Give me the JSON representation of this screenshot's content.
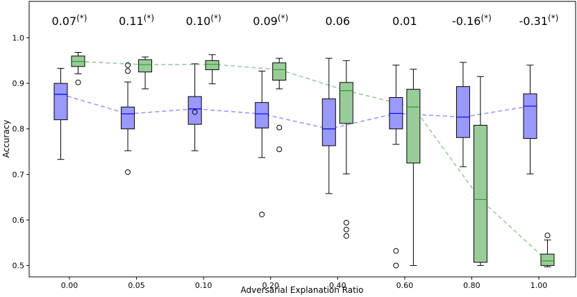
{
  "chart_data": {
    "type": "boxplot",
    "xlabel": "Adversarial Explanation Ratio",
    "ylabel": "Accuracy",
    "ylim": [
      0.475,
      1.08
    ],
    "yticks": [
      0.5,
      0.6,
      0.7,
      0.8,
      0.9,
      1.0
    ],
    "ytick_labels": [
      "0.5",
      "0.6",
      "0.7",
      "0.8",
      "0.9",
      "1.0"
    ],
    "categories": [
      "0.00",
      "0.05",
      "0.10",
      "0.20",
      "0.40",
      "0.60",
      "0.80",
      "1.00"
    ],
    "annotations": [
      {
        "value": "0.07",
        "mark": "(*)"
      },
      {
        "value": "0.11",
        "mark": "(*)"
      },
      {
        "value": "0.10",
        "mark": "(*)"
      },
      {
        "value": "0.09",
        "mark": "(*)"
      },
      {
        "value": "0.06",
        "mark": ""
      },
      {
        "value": "0.01",
        "mark": ""
      },
      {
        "value": "-0.16",
        "mark": "(*)"
      },
      {
        "value": "-0.31",
        "mark": "(*)"
      }
    ],
    "grid": false,
    "series": [
      {
        "color": "#9999ff",
        "median_color": "#0000ee",
        "trend_color": "#9999ff",
        "boxes": [
          {
            "whislo": 0.733,
            "q1": 0.82,
            "med": 0.876,
            "q3": 0.9,
            "whishi": 0.933,
            "fliers": []
          },
          {
            "whislo": 0.752,
            "q1": 0.8,
            "med": 0.833,
            "q3": 0.848,
            "whishi": 0.903,
            "fliers": [
              0.94,
              0.927,
              0.705
            ]
          },
          {
            "whislo": 0.752,
            "q1": 0.81,
            "med": 0.844,
            "q3": 0.871,
            "whishi": 0.943,
            "fliers": [
              0.837
            ]
          },
          {
            "whislo": 0.737,
            "q1": 0.802,
            "med": 0.833,
            "q3": 0.858,
            "whishi": 0.927,
            "fliers": [
              0.612
            ]
          },
          {
            "whislo": 0.658,
            "q1": 0.763,
            "med": 0.8,
            "q3": 0.866,
            "whishi": 0.955,
            "fliers": []
          },
          {
            "whislo": 0.766,
            "q1": 0.8,
            "med": 0.834,
            "q3": 0.869,
            "whishi": 0.94,
            "fliers": [
              0.532,
              0.5
            ]
          },
          {
            "whislo": 0.717,
            "q1": 0.781,
            "med": 0.826,
            "q3": 0.893,
            "whishi": 0.946,
            "fliers": []
          },
          {
            "whislo": 0.701,
            "q1": 0.779,
            "med": 0.85,
            "q3": 0.877,
            "whishi": 0.94,
            "fliers": []
          }
        ]
      },
      {
        "color": "#99cc99",
        "median_color": "#2ca02c",
        "trend_color": "#99cc99",
        "boxes": [
          {
            "whislo": 0.921,
            "q1": 0.937,
            "med": 0.948,
            "q3": 0.96,
            "whishi": 0.968,
            "fliers": [
              0.902
            ]
          },
          {
            "whislo": 0.888,
            "q1": 0.925,
            "med": 0.941,
            "q3": 0.952,
            "whishi": 0.958,
            "fliers": []
          },
          {
            "whislo": 0.899,
            "q1": 0.93,
            "med": 0.942,
            "q3": 0.95,
            "whishi": 0.963,
            "fliers": []
          },
          {
            "whislo": 0.888,
            "q1": 0.907,
            "med": 0.93,
            "q3": 0.945,
            "whishi": 0.955,
            "fliers": [
              0.803,
              0.755
            ]
          },
          {
            "whislo": 0.701,
            "q1": 0.812,
            "med": 0.884,
            "q3": 0.902,
            "whishi": 0.95,
            "fliers": [
              0.594,
              0.579,
              0.565
            ]
          },
          {
            "whislo": 0.5,
            "q1": 0.725,
            "med": 0.848,
            "q3": 0.887,
            "whishi": 0.931,
            "fliers": []
          },
          {
            "whislo": 0.5,
            "q1": 0.507,
            "med": 0.645,
            "q3": 0.808,
            "whishi": 0.915,
            "fliers": []
          },
          {
            "whislo": 0.497,
            "q1": 0.5,
            "med": 0.51,
            "q3": 0.525,
            "whishi": 0.556,
            "fliers": [
              0.566
            ]
          }
        ]
      }
    ]
  }
}
